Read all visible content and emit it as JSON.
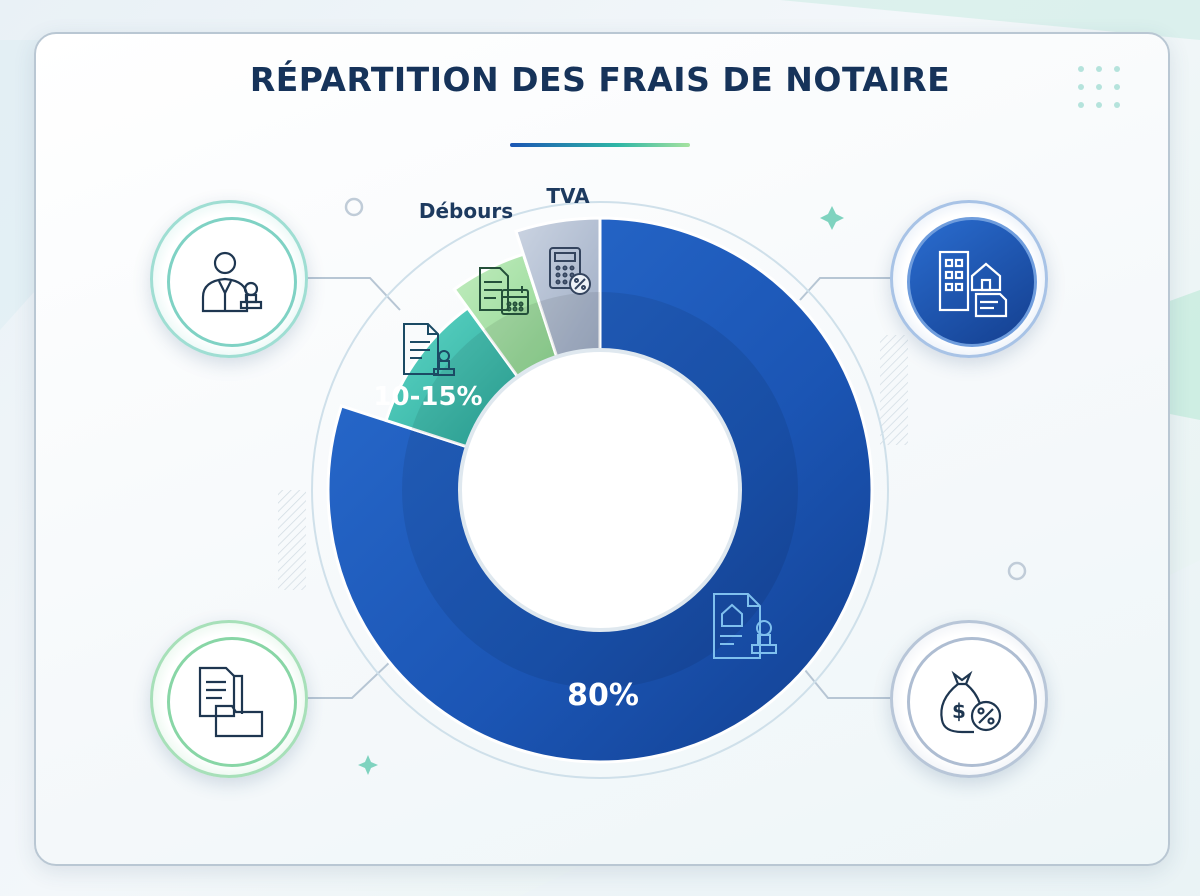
{
  "title": "RÉPARTITION DES FRAIS DE NOTAIRE",
  "colors": {
    "primary": "#1b55b4",
    "teal": "#3cc3b2",
    "green": "#a6e2a4",
    "gray": "#b4c0d3",
    "title": "#16335a"
  },
  "icons": {
    "top_left": "notary-with-stamp-icon",
    "top_right": "buildings-house-deed-icon",
    "bottom_left": "documents-folder-icon",
    "bottom_right": "money-bag-percent-icon",
    "slice_80": "house-deed-stamp-icon",
    "slice_10_15": "signed-document-stamp-icon",
    "slice_debours": "documents-calendar-icon",
    "slice_tva": "calculator-percent-icon"
  },
  "chart_data": {
    "type": "pie",
    "title": "RÉPARTITION DES FRAIS DE NOTAIRE",
    "slices": [
      {
        "label": "80%",
        "value": 80,
        "color": "#1b55b4"
      },
      {
        "label": "10-15%",
        "value": 10,
        "color": "#3cc3b2"
      },
      {
        "label": "Débours",
        "value": 5,
        "color": "#a6e2a4"
      },
      {
        "label": "TVA",
        "value": 5,
        "color": "#b4c0d3"
      }
    ]
  }
}
